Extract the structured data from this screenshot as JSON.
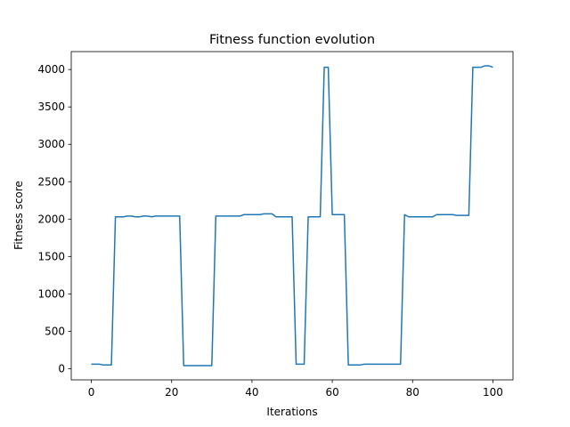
{
  "chart_data": {
    "type": "line",
    "title": "Fitness function evolution",
    "xlabel": "Iterations",
    "ylabel": "Fitness score",
    "xlim": [
      -5,
      105
    ],
    "ylim": [
      -150,
      4240
    ],
    "xticks": [
      0,
      20,
      40,
      60,
      80,
      100
    ],
    "yticks": [
      0,
      500,
      1000,
      1500,
      2000,
      2500,
      3000,
      3500,
      4000
    ],
    "grid": false,
    "line_color": "#1f77b4",
    "series": [
      {
        "x": [
          0,
          1,
          2,
          3,
          4,
          5,
          6,
          7,
          8,
          9,
          10,
          11,
          12,
          13,
          14,
          15,
          16,
          17,
          18,
          19,
          20,
          21,
          22,
          23,
          24,
          25,
          26,
          27,
          28,
          29,
          30,
          31,
          32,
          33,
          34,
          35,
          36,
          37,
          38,
          39,
          40,
          41,
          42,
          43,
          44,
          45,
          46,
          47,
          48,
          49,
          50,
          51,
          52,
          53,
          54,
          55,
          56,
          57,
          58,
          59,
          60,
          61,
          62,
          63,
          64,
          65,
          66,
          67,
          68,
          69,
          70,
          71,
          72,
          73,
          74,
          75,
          76,
          77,
          78,
          79,
          80,
          81,
          82,
          83,
          84,
          85,
          86,
          87,
          88,
          89,
          90,
          91,
          92,
          93,
          94,
          95,
          96,
          97,
          98,
          99,
          100
        ],
        "values": [
          60,
          60,
          60,
          50,
          50,
          50,
          2030,
          2030,
          2030,
          2040,
          2040,
          2030,
          2030,
          2040,
          2040,
          2030,
          2040,
          2040,
          2040,
          2040,
          2040,
          2040,
          2040,
          40,
          40,
          40,
          40,
          40,
          40,
          40,
          40,
          2040,
          2040,
          2040,
          2040,
          2040,
          2040,
          2040,
          2060,
          2060,
          2060,
          2060,
          2060,
          2070,
          2070,
          2070,
          2030,
          2030,
          2030,
          2030,
          2030,
          60,
          60,
          60,
          2030,
          2030,
          2030,
          2030,
          4030,
          4030,
          2060,
          2060,
          2060,
          2060,
          50,
          50,
          50,
          50,
          60,
          60,
          60,
          60,
          60,
          60,
          60,
          60,
          60,
          60,
          2060,
          2030,
          2030,
          2030,
          2030,
          2030,
          2030,
          2030,
          2060,
          2060,
          2060,
          2060,
          2060,
          2050,
          2050,
          2050,
          2050,
          4030,
          4030,
          4030,
          4050,
          4050,
          4030
        ]
      }
    ]
  }
}
